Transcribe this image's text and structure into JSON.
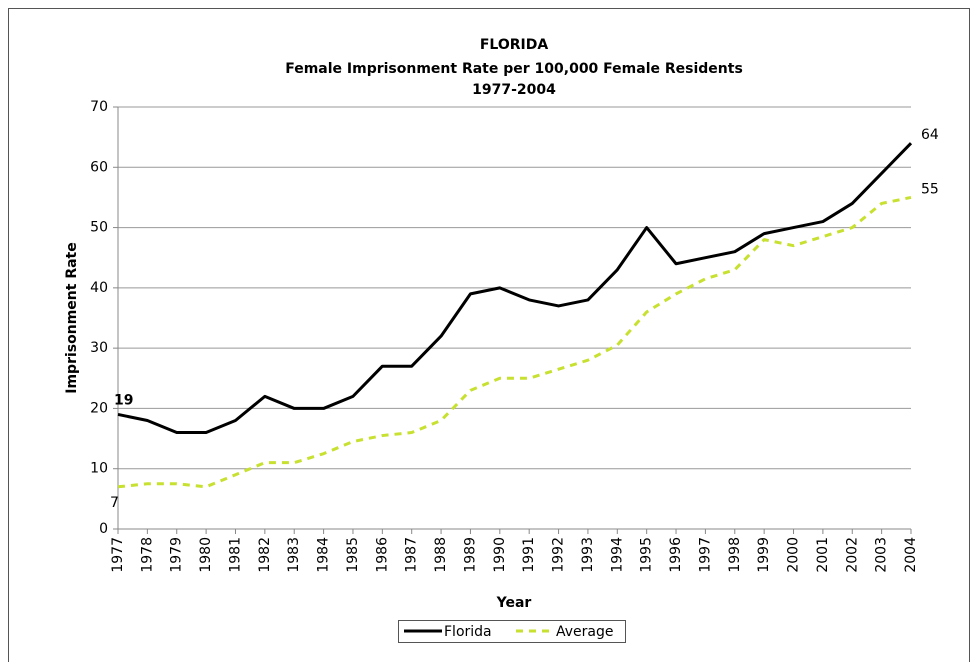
{
  "chart_data": {
    "type": "line",
    "title": "FLORIDA",
    "subtitle": "Female Imprisonment Rate per 100,000 Female Residents",
    "period": "1977-2004",
    "x_label": "Year",
    "y_label": "Imprisonment Rate",
    "categories": [
      1977,
      1978,
      1979,
      1980,
      1981,
      1982,
      1983,
      1984,
      1985,
      1986,
      1987,
      1988,
      1989,
      1990,
      1991,
      1992,
      1993,
      1994,
      1995,
      1996,
      1997,
      1998,
      1999,
      2000,
      2001,
      2002,
      2003,
      2004
    ],
    "series": [
      {
        "name": "Florida",
        "color": "#000000",
        "dashed": false,
        "values": [
          19,
          18,
          16,
          16,
          18,
          22,
          20,
          20,
          22,
          27,
          27,
          32,
          39,
          40,
          38,
          37,
          38,
          43,
          50,
          44,
          45,
          46,
          49,
          50,
          51,
          54,
          59,
          64
        ]
      },
      {
        "name": "Average",
        "color": "#c8e030",
        "dashed": true,
        "values": [
          7,
          7.5,
          7.5,
          7,
          9,
          11,
          11,
          12.5,
          14.5,
          15.5,
          16,
          18,
          23,
          25,
          25,
          26.5,
          28,
          30.5,
          36,
          39,
          41.5,
          43,
          48,
          47,
          48.5,
          50,
          54,
          55
        ]
      }
    ],
    "data_labels": "first-last",
    "ylim": [
      0,
      70
    ],
    "yticks": [
      0,
      10,
      20,
      30,
      40,
      50,
      60,
      70
    ],
    "grid": true,
    "legend": "bottom"
  }
}
